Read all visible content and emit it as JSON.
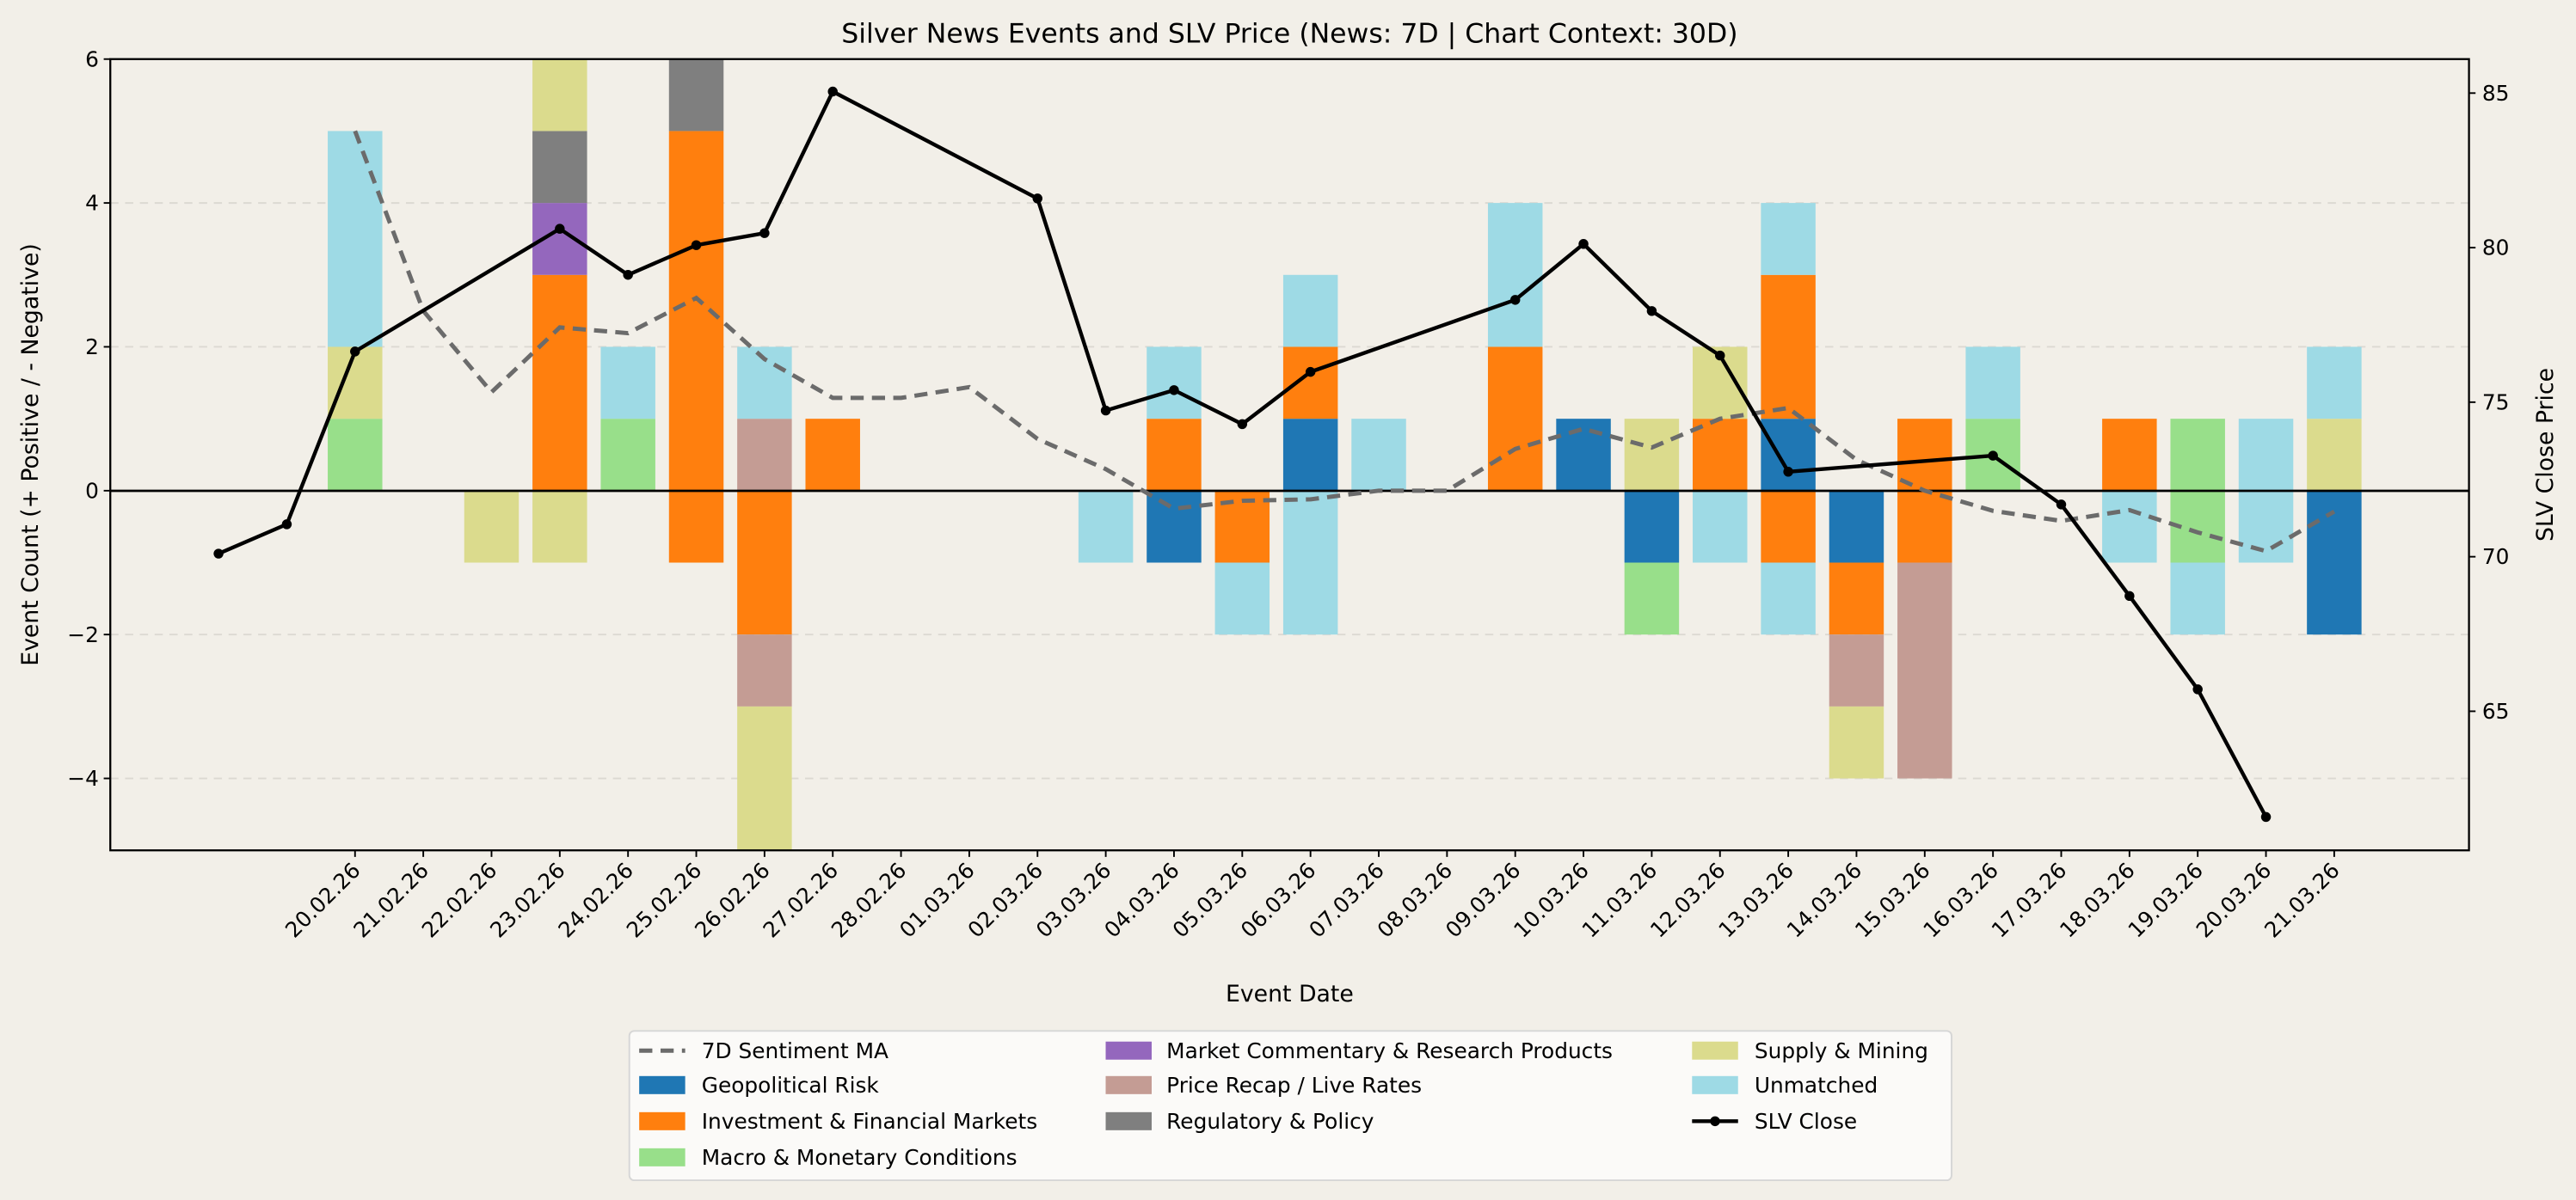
{
  "chart_data": {
    "type": "bar",
    "stacked": true,
    "title": "Silver News Events and SLV Price (News: 7D | Chart Context: 30D)",
    "xlabel": "Event Date",
    "ylabel": "Event Count (+ Positive / - Negative)",
    "y2label": "SLV Close Price",
    "ylim": [
      -5,
      6
    ],
    "y2lim": [
      60.5,
      86.1
    ],
    "yticks": [
      "6",
      "4",
      "2",
      "0",
      "−2",
      "−4"
    ],
    "y2ticks": [
      "85",
      "80",
      "75",
      "70",
      "65"
    ],
    "grid": "horizontal dashed",
    "legend_position": "bottom-center",
    "categories": [
      "20.02.26",
      "21.02.26",
      "22.02.26",
      "23.02.26",
      "24.02.26",
      "25.02.26",
      "26.02.26",
      "27.02.26",
      "28.02.26",
      "01.03.26",
      "02.03.26",
      "03.03.26",
      "04.03.26",
      "05.03.26",
      "06.03.26",
      "07.03.26",
      "08.03.26",
      "09.03.26",
      "10.03.26",
      "11.03.26",
      "12.03.26",
      "13.03.26",
      "14.03.26",
      "15.03.26",
      "16.03.26",
      "17.03.26",
      "18.03.26",
      "19.03.26",
      "20.03.26",
      "21.03.26"
    ],
    "series": [
      {
        "name": "Geopolitical Risk",
        "color": "#1f77b4",
        "positive": [
          0,
          0,
          0,
          0,
          0,
          0,
          0,
          0,
          0,
          0,
          0,
          0,
          0,
          0,
          1,
          0,
          0,
          0,
          1,
          0,
          0,
          1,
          0,
          0,
          0,
          0,
          0,
          0,
          0,
          0
        ],
        "negative": [
          0,
          0,
          0,
          0,
          0,
          0,
          0,
          0,
          0,
          0,
          0,
          0,
          1,
          0,
          0,
          0,
          0,
          0,
          0,
          1,
          0,
          0,
          1,
          0,
          0,
          0,
          0,
          0,
          0,
          2
        ]
      },
      {
        "name": "Investment & Financial Markets",
        "color": "#ff7f0e",
        "positive": [
          0,
          0,
          0,
          3,
          0,
          5,
          0,
          1,
          0,
          0,
          0,
          0,
          1,
          0,
          1,
          0,
          0,
          2,
          0,
          0,
          1,
          2,
          0,
          1,
          0,
          0,
          1,
          0,
          0,
          0
        ],
        "negative": [
          0,
          0,
          0,
          0,
          0,
          1,
          2,
          0,
          0,
          0,
          0,
          0,
          0,
          1,
          0,
          0,
          0,
          0,
          0,
          0,
          0,
          1,
          1,
          1,
          0,
          0,
          0,
          0,
          0,
          0
        ]
      },
      {
        "name": "Macro & Monetary Conditions",
        "color": "#98df8a",
        "positive": [
          1,
          0,
          0,
          0,
          1,
          0,
          0,
          0,
          0,
          0,
          0,
          0,
          0,
          0,
          0,
          0,
          0,
          0,
          0,
          0,
          0,
          0,
          0,
          0,
          1,
          0,
          0,
          1,
          0,
          0
        ],
        "negative": [
          0,
          0,
          0,
          0,
          0,
          0,
          0,
          0,
          0,
          0,
          0,
          0,
          0,
          0,
          0,
          0,
          0,
          0,
          0,
          1,
          0,
          0,
          0,
          0,
          0,
          0,
          0,
          1,
          0,
          0
        ]
      },
      {
        "name": "Market Commentary & Research Products",
        "color": "#9467bd",
        "positive": [
          0,
          0,
          0,
          1,
          0,
          0,
          0,
          0,
          0,
          0,
          0,
          0,
          0,
          0,
          0,
          0,
          0,
          0,
          0,
          0,
          0,
          0,
          0,
          0,
          0,
          0,
          0,
          0,
          0,
          0
        ],
        "negative": [
          0,
          0,
          0,
          0,
          0,
          0,
          0,
          0,
          0,
          0,
          0,
          0,
          0,
          0,
          0,
          0,
          0,
          0,
          0,
          0,
          0,
          0,
          0,
          0,
          0,
          0,
          0,
          0,
          0,
          0
        ]
      },
      {
        "name": "Price Recap / Live Rates",
        "color": "#c49c94",
        "positive": [
          0,
          0,
          0,
          0,
          0,
          0,
          1,
          0,
          0,
          0,
          0,
          0,
          0,
          0,
          0,
          0,
          0,
          0,
          0,
          0,
          0,
          0,
          0,
          0,
          0,
          0,
          0,
          0,
          0,
          0
        ],
        "negative": [
          0,
          0,
          0,
          0,
          0,
          0,
          1,
          0,
          0,
          0,
          0,
          0,
          0,
          0,
          0,
          0,
          0,
          0,
          0,
          0,
          0,
          0,
          1,
          3,
          0,
          0,
          0,
          0,
          0,
          0
        ]
      },
      {
        "name": "Regulatory & Policy",
        "color": "#7f7f7f",
        "positive": [
          0,
          0,
          0,
          1,
          0,
          1,
          0,
          0,
          0,
          0,
          0,
          0,
          0,
          0,
          0,
          0,
          0,
          0,
          0,
          0,
          0,
          0,
          0,
          0,
          0,
          0,
          0,
          0,
          0,
          0
        ],
        "negative": [
          0,
          0,
          0,
          0,
          0,
          0,
          0,
          0,
          0,
          0,
          0,
          0,
          0,
          0,
          0,
          0,
          0,
          0,
          0,
          0,
          0,
          0,
          0,
          0,
          0,
          0,
          0,
          0,
          0,
          0
        ]
      },
      {
        "name": "Supply & Mining",
        "color": "#dbdb8d",
        "positive": [
          1,
          0,
          0,
          1,
          0,
          0,
          0,
          0,
          0,
          0,
          0,
          0,
          0,
          0,
          0,
          0,
          0,
          0,
          0,
          1,
          1,
          0,
          0,
          0,
          0,
          0,
          0,
          0,
          0,
          1
        ],
        "negative": [
          0,
          0,
          1,
          1,
          0,
          0,
          2,
          0,
          0,
          0,
          0,
          0,
          0,
          0,
          0,
          0,
          0,
          0,
          0,
          0,
          0,
          0,
          1,
          0,
          0,
          0,
          0,
          0,
          0,
          0
        ]
      },
      {
        "name": "Unmatched",
        "color": "#9edae5",
        "positive": [
          3,
          0,
          0,
          0,
          1,
          0,
          1,
          0,
          0,
          0,
          0,
          0,
          1,
          0,
          1,
          1,
          0,
          2,
          0,
          0,
          0,
          1,
          0,
          0,
          1,
          0,
          0,
          0,
          1,
          1
        ],
        "negative": [
          0,
          0,
          0,
          0,
          0,
          0,
          0,
          0,
          0,
          0,
          0,
          1,
          0,
          1,
          2,
          0,
          0,
          0,
          0,
          0,
          1,
          1,
          0,
          0,
          0,
          0,
          1,
          1,
          1,
          0
        ]
      }
    ],
    "sentiment_ma": {
      "name": "7D Sentiment MA",
      "color": "#6b6b6b",
      "values": [
        5.0,
        2.5,
        1.37,
        2.27,
        2.19,
        2.68,
        1.83,
        1.29,
        1.29,
        1.44,
        0.72,
        0.3,
        -0.25,
        -0.14,
        -0.12,
        0.0,
        0.0,
        0.58,
        0.86,
        0.6,
        1.0,
        1.15,
        0.43,
        0.0,
        -0.28,
        -0.42,
        -0.27,
        -0.58,
        -0.84,
        -0.29
      ]
    },
    "slv_close": {
      "name": "SLV Close",
      "color": "#000000",
      "points": [
        {
          "date": "18.02.26",
          "value": 70.1
        },
        {
          "date": "19.02.26",
          "value": 71.05
        },
        {
          "date": "20.02.26",
          "value": 76.64
        },
        {
          "date": "23.02.26",
          "value": 80.61
        },
        {
          "date": "24.02.26",
          "value": 79.12
        },
        {
          "date": "25.02.26",
          "value": 80.08
        },
        {
          "date": "26.02.26",
          "value": 80.47
        },
        {
          "date": "27.02.26",
          "value": 85.05
        },
        {
          "date": "02.03.26",
          "value": 81.59
        },
        {
          "date": "03.03.26",
          "value": 74.73
        },
        {
          "date": "04.03.26",
          "value": 75.39
        },
        {
          "date": "05.03.26",
          "value": 74.29
        },
        {
          "date": "06.03.26",
          "value": 75.98
        },
        {
          "date": "09.03.26",
          "value": 78.31
        },
        {
          "date": "10.03.26",
          "value": 80.12
        },
        {
          "date": "11.03.26",
          "value": 77.95
        },
        {
          "date": "12.03.26",
          "value": 76.51
        },
        {
          "date": "13.03.26",
          "value": 72.75
        },
        {
          "date": "16.03.26",
          "value": 73.27
        },
        {
          "date": "17.03.26",
          "value": 71.69
        },
        {
          "date": "18.03.26",
          "value": 68.73
        },
        {
          "date": "19.03.26",
          "value": 65.71
        },
        {
          "date": "20.03.26",
          "value": 61.58
        }
      ]
    },
    "legend": [
      "7D Sentiment MA",
      "Geopolitical Risk",
      "Investment & Financial Markets",
      "Macro & Monetary Conditions",
      "Market Commentary & Research Products",
      "Price Recap / Live Rates",
      "Regulatory & Policy",
      "Supply & Mining",
      "Unmatched",
      "SLV Close"
    ]
  }
}
